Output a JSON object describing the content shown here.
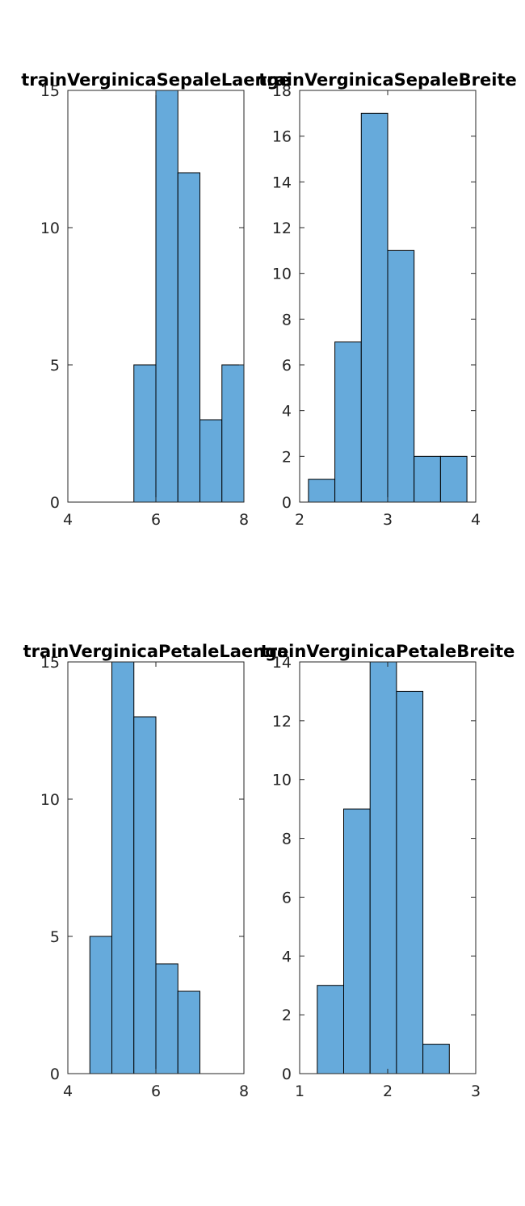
{
  "chart_data": [
    {
      "type": "bar",
      "title": "trainVerginicaSepaleLaenge",
      "bin_edges": [
        4.0,
        4.5,
        5.0,
        5.5,
        6.0,
        6.5,
        7.0,
        7.5,
        8.0
      ],
      "counts": [
        0,
        0,
        0,
        5,
        15,
        12,
        3,
        5
      ],
      "xlim": [
        4,
        8
      ],
      "ylim": [
        0,
        15
      ],
      "xticks": [
        4,
        6,
        8
      ],
      "yticks": [
        0,
        5,
        10,
        15
      ],
      "grid": false,
      "bar_color": "#66AADB"
    },
    {
      "type": "bar",
      "title": "trainVerginicaSepaleBreite",
      "bin_edges": [
        2.1,
        2.4,
        2.7,
        3.0,
        3.3,
        3.6,
        3.9
      ],
      "counts": [
        1,
        7,
        17,
        11,
        2,
        2
      ],
      "xlim": [
        2,
        4
      ],
      "ylim": [
        0,
        18
      ],
      "xticks": [
        2,
        3,
        4
      ],
      "yticks": [
        0,
        2,
        4,
        6,
        8,
        10,
        12,
        14,
        16,
        18
      ],
      "grid": false,
      "bar_color": "#66AADB"
    },
    {
      "type": "bar",
      "title": "trainVerginicaPetaleLaenge",
      "bin_edges": [
        4.5,
        5.0,
        5.5,
        6.0,
        6.5,
        7.0
      ],
      "counts": [
        5,
        15,
        13,
        4,
        3
      ],
      "xlim": [
        4,
        8
      ],
      "ylim": [
        0,
        15
      ],
      "xticks": [
        4,
        6,
        8
      ],
      "yticks": [
        0,
        5,
        10,
        15
      ],
      "grid": false,
      "bar_color": "#66AADB"
    },
    {
      "type": "bar",
      "title": "trainVerginicaPetaleBreite",
      "bin_edges": [
        1.2,
        1.5,
        1.8,
        2.1,
        2.4,
        2.7
      ],
      "counts": [
        3,
        9,
        14,
        13,
        1
      ],
      "xlim": [
        1,
        3
      ],
      "ylim": [
        0,
        14
      ],
      "xticks": [
        1,
        2,
        3
      ],
      "yticks": [
        0,
        2,
        4,
        6,
        8,
        10,
        12,
        14
      ],
      "grid": false,
      "bar_color": "#66AADB"
    }
  ]
}
